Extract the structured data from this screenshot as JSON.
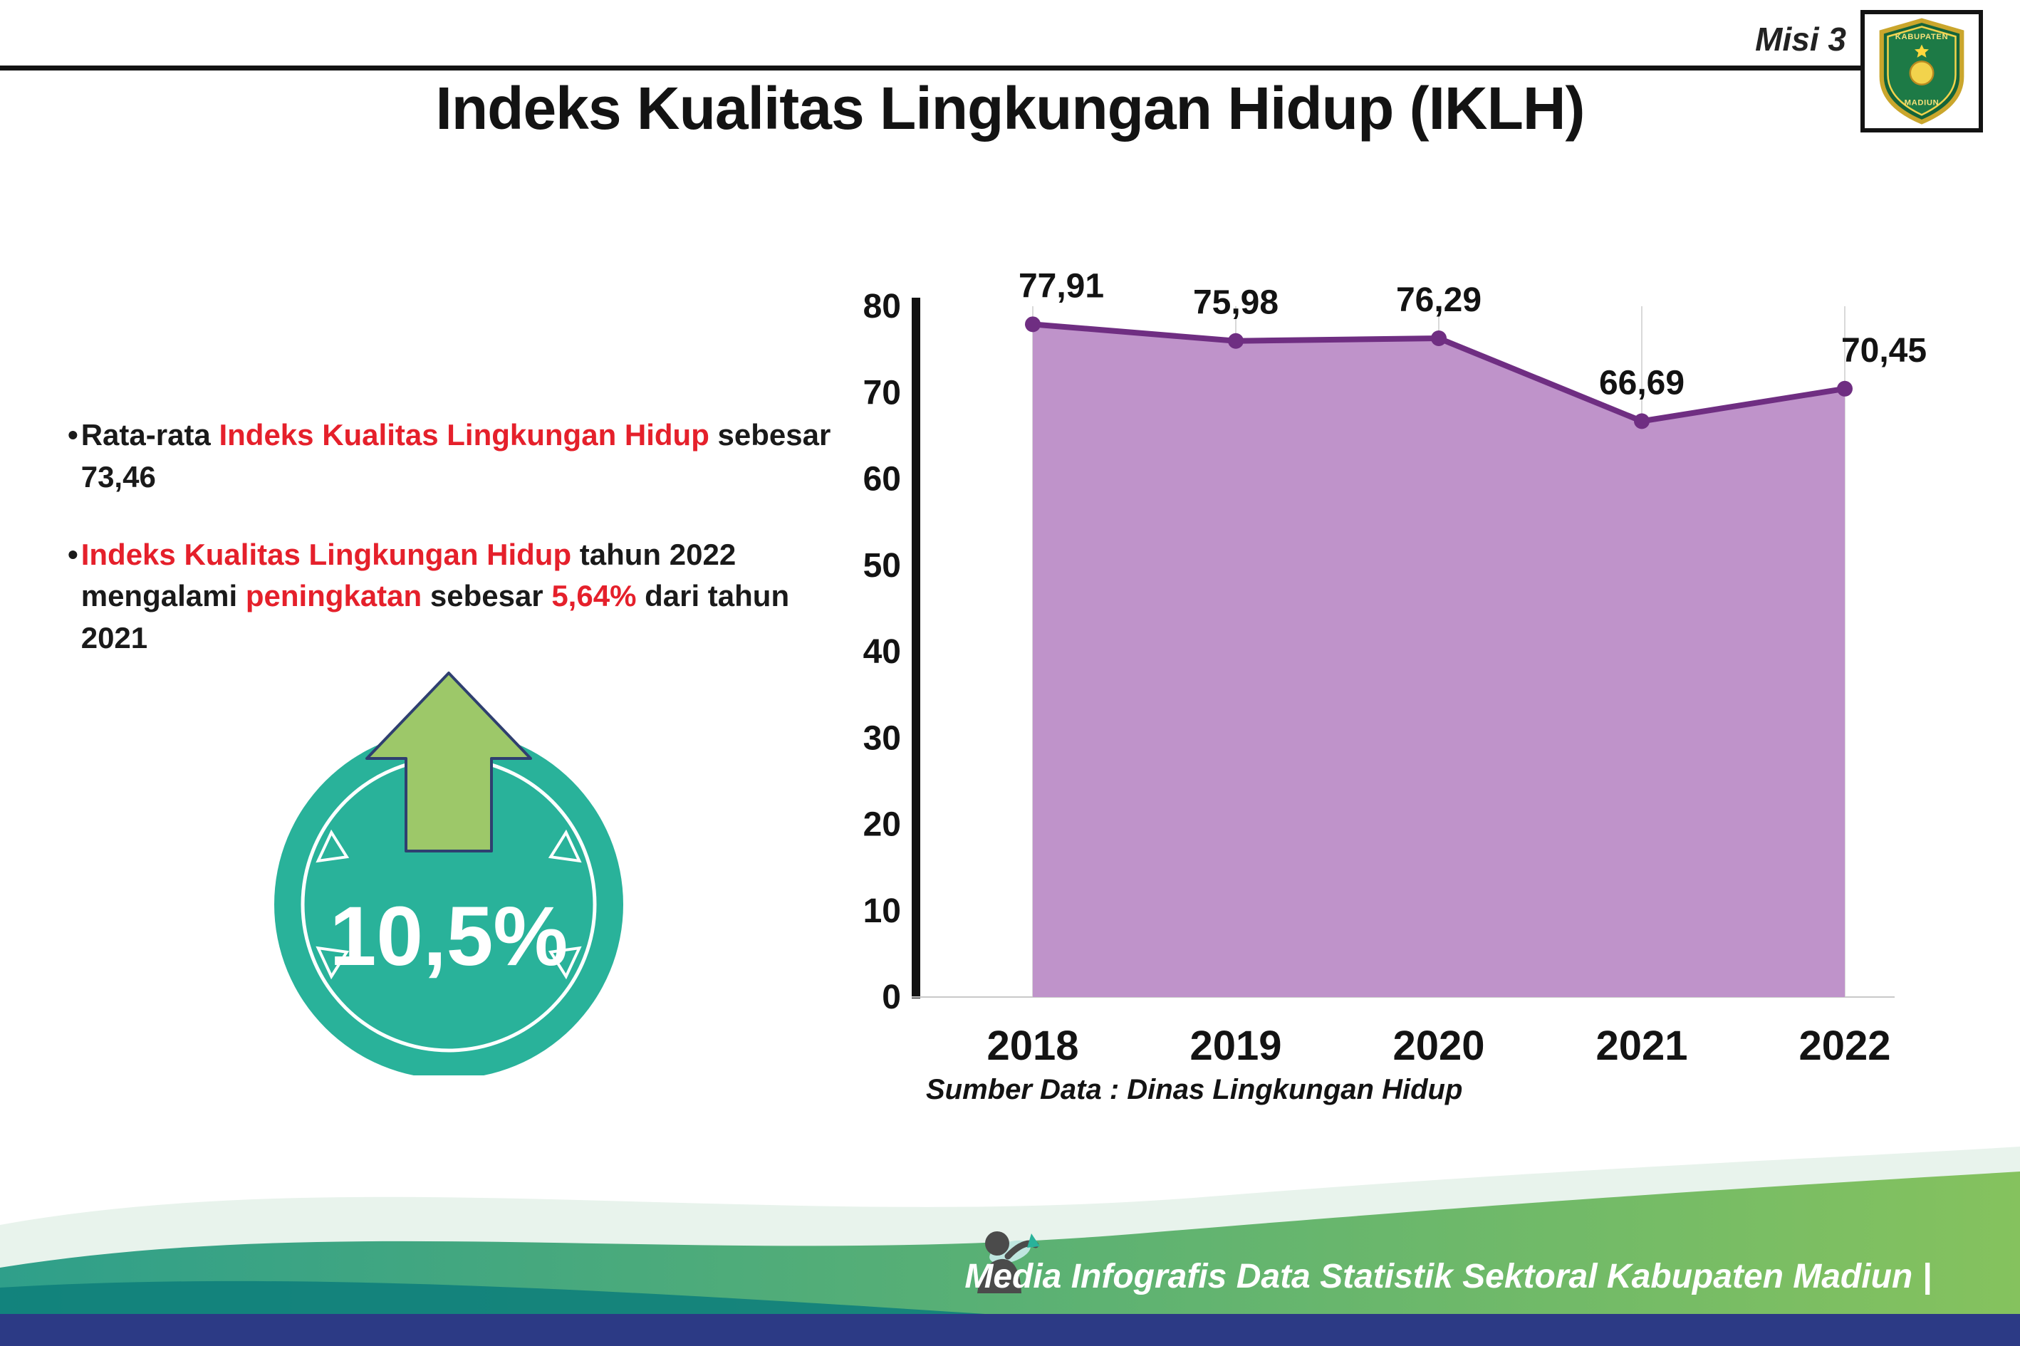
{
  "header": {
    "misi_label": "Misi 3",
    "logo": {
      "name": "Kabupaten Madiun",
      "top_text": "KABUPATEN",
      "bottom_text": "MADIUN"
    }
  },
  "title": "Indeks Kualitas Lingkungan Hidup (IKLH)",
  "bullets": [
    {
      "segments": [
        {
          "text": "Rata-rata ",
          "color": "black"
        },
        {
          "text": "Indeks Kualitas Lingkungan Hidup",
          "color": "red"
        },
        {
          "text": " sebesar 73,46",
          "color": "black"
        }
      ]
    },
    {
      "segments": [
        {
          "text": "Indeks Kualitas Lingkungan Hidup",
          "color": "red"
        },
        {
          "text": " tahun 2022 mengalami ",
          "color": "black"
        },
        {
          "text": "peningkatan",
          "color": "red"
        },
        {
          "text": " sebesar ",
          "color": "black"
        },
        {
          "text": "5,64%",
          "color": "red"
        },
        {
          "text": " dari tahun 2021",
          "color": "black"
        }
      ]
    }
  ],
  "badge": {
    "value": "10,5%"
  },
  "chart_data": {
    "type": "area",
    "categories": [
      "2018",
      "2019",
      "2020",
      "2021",
      "2022"
    ],
    "values": [
      77.91,
      75.98,
      76.29,
      66.69,
      70.45
    ],
    "value_labels": [
      "77,91",
      "75,98",
      "76,29",
      "66,69",
      "70,45"
    ],
    "title": "",
    "xlabel": "",
    "ylabel": "",
    "ylim": [
      0,
      80
    ],
    "yticks": [
      0,
      10,
      20,
      30,
      40,
      50,
      60,
      70,
      80
    ],
    "grid": "vertical",
    "legend": "none",
    "area_color": "#bf93ca",
    "line_color": "#6f2e82",
    "source": "Sumber Data : Dinas Lingkungan Hidup"
  },
  "footer": {
    "credit": "Media Infografis Data Statistik Sektoral Kabupaten Madiun |"
  },
  "colors": {
    "accent_red": "#e5202b",
    "badge_teal": "#29b29a",
    "arrow_green": "#9dc869",
    "area_purple": "#bf93ca",
    "line_purple": "#6f2e82",
    "footer_teal_dark": "#0f7f7b",
    "footer_green": "#85c25e",
    "footer_navy": "#2c3a85"
  }
}
